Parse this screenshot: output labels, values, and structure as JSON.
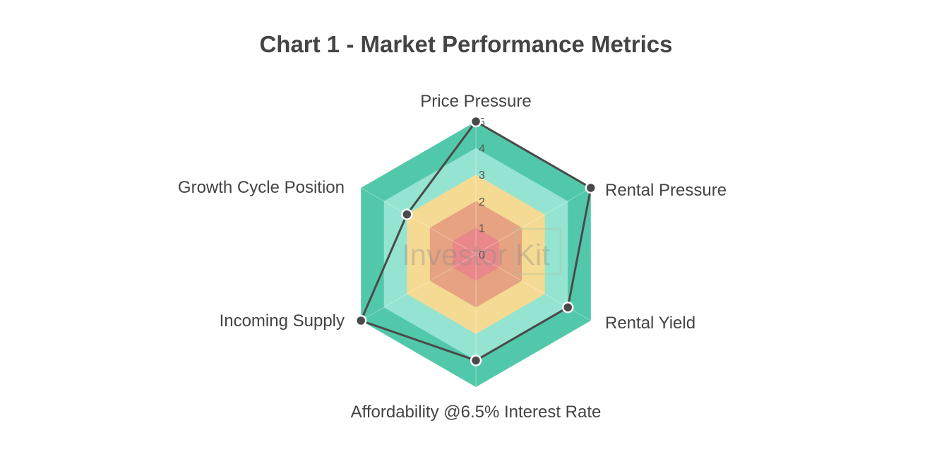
{
  "chart_data": {
    "type": "radar",
    "title": "Chart 1 - Market Performance Metrics",
    "axes": [
      "Price Pressure",
      "Rental Pressure",
      "Rental Yield",
      "Affordability @6.5% Interest Rate",
      "Incoming Supply",
      "Growth Cycle Position"
    ],
    "values": [
      5,
      5,
      4,
      4,
      5,
      3
    ],
    "scale": {
      "min": 0,
      "max": 5,
      "ticks": [
        "0",
        "1",
        "2",
        "3",
        "4",
        "5"
      ]
    },
    "bands": [
      {
        "from": 0,
        "to": 1,
        "color": "#e9878a"
      },
      {
        "from": 1,
        "to": 2,
        "color": "#e6a281"
      },
      {
        "from": 2,
        "to": 3,
        "color": "#f5da93"
      },
      {
        "from": 3,
        "to": 4,
        "color": "#94e4d1"
      },
      {
        "from": 4,
        "to": 5,
        "color": "#52c8aa"
      }
    ],
    "line_color": "#4a4a4a",
    "watermark": "Investor Kit"
  }
}
